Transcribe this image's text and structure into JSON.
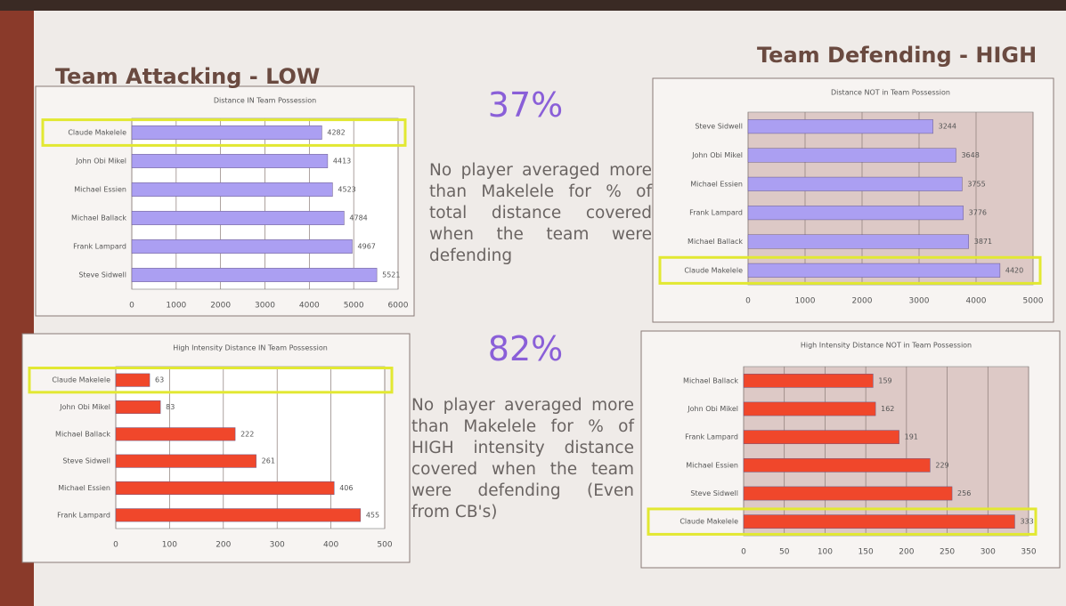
{
  "slide": {
    "left_heading": "Team Attacking - LOW",
    "right_heading": "Team Defending - HIGH",
    "stat_1": "37%",
    "text_1": "No player averaged more than Makelele for % of total distance covered when the team were defending",
    "stat_2": "82%",
    "text_2": "No player averaged more than Makelele for % of HIGH intensity distance covered when the team were defending (Even from CB's)"
  },
  "chart_data": [
    {
      "type": "bar",
      "orientation": "horizontal",
      "title": "Distance IN Team Possession",
      "categories": [
        "Claude Makelele",
        "John Obi Mikel",
        "Michael Essien",
        "Michael Ballack",
        "Frank Lampard",
        "Steve Sidwell"
      ],
      "values": [
        4282,
        4413,
        4523,
        4784,
        4967,
        5521
      ],
      "color": "#ab9ff2",
      "xlim": [
        0,
        6000
      ],
      "xticks": [
        0,
        1000,
        2000,
        3000,
        4000,
        5000,
        6000
      ],
      "grid": true,
      "highlight": "Claude Makelele"
    },
    {
      "type": "bar",
      "orientation": "horizontal",
      "title": "Distance NOT in Team Possession",
      "categories": [
        "Steve Sidwell",
        "John Obi Mikel",
        "Michael Essien",
        "Frank Lampard",
        "Michael Ballack",
        "Claude Makelele"
      ],
      "values": [
        3244,
        3648,
        3755,
        3776,
        3871,
        4420
      ],
      "color": "#ab9ff2",
      "xlim": [
        0,
        5000
      ],
      "xticks": [
        0,
        1000,
        2000,
        3000,
        4000,
        5000
      ],
      "grid": true,
      "highlight": "Claude Makelele"
    },
    {
      "type": "bar",
      "orientation": "horizontal",
      "title": "High Intensity Distance IN Team Possession",
      "categories": [
        "Claude Makelele",
        "John Obi Mikel",
        "Michael Ballack",
        "Steve Sidwell",
        "Michael Essien",
        "Frank Lampard"
      ],
      "values": [
        63,
        83,
        222,
        261,
        406,
        455
      ],
      "color": "#f0472b",
      "xlim": [
        0,
        500
      ],
      "xticks": [
        0,
        100,
        200,
        300,
        400,
        500
      ],
      "grid": true,
      "highlight": "Claude Makelele"
    },
    {
      "type": "bar",
      "orientation": "horizontal",
      "title": "High Intensity Distance NOT in Team Possession",
      "categories": [
        "Michael Ballack",
        "John Obi Mikel",
        "Frank Lampard",
        "Michael Essien",
        "Steve Sidwell",
        "Claude Makelele"
      ],
      "values": [
        159,
        162,
        191,
        229,
        256,
        333
      ],
      "color": "#f0472b",
      "xlim": [
        0,
        350
      ],
      "xticks": [
        0,
        50,
        100,
        150,
        200,
        250,
        300,
        350
      ],
      "grid": true,
      "highlight": "Claude Makelele"
    }
  ]
}
